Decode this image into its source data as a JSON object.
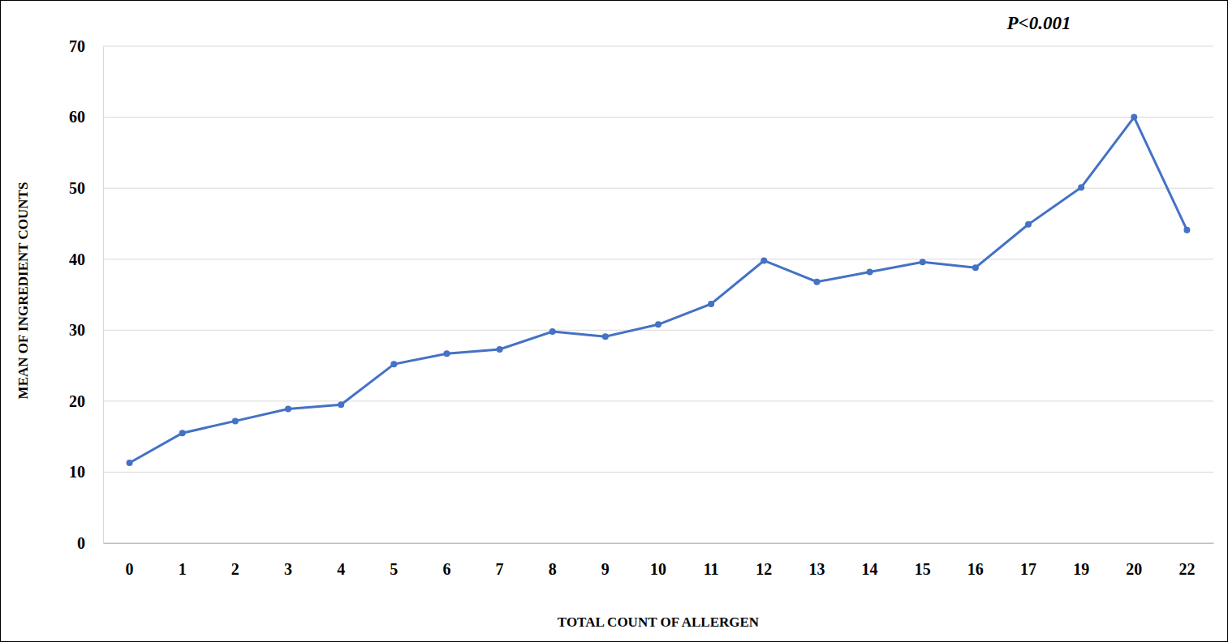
{
  "chart_data": {
    "type": "line",
    "x_label": "TOTAL COUNT OF ALLERGEN",
    "y_label": "MEAN OF INGREDIENT COUNTS",
    "annotations": [
      "P<0.001"
    ],
    "categories": [
      "0",
      "1",
      "2",
      "3",
      "4",
      "5",
      "6",
      "7",
      "8",
      "9",
      "10",
      "11",
      "12",
      "13",
      "14",
      "15",
      "16",
      "17",
      "19",
      "20",
      "22"
    ],
    "values": [
      11.3,
      15.5,
      17.2,
      18.9,
      19.5,
      25.2,
      26.7,
      27.3,
      29.8,
      29.1,
      30.8,
      33.7,
      39.8,
      36.8,
      38.2,
      39.6,
      38.8,
      44.9,
      50.1,
      60.0,
      44.1
    ],
    "color": "#4472c4",
    "marker": "circle",
    "ylim": [
      0,
      70
    ],
    "yticks": [
      0,
      10,
      20,
      30,
      40,
      50,
      60,
      70
    ],
    "grid": true
  }
}
